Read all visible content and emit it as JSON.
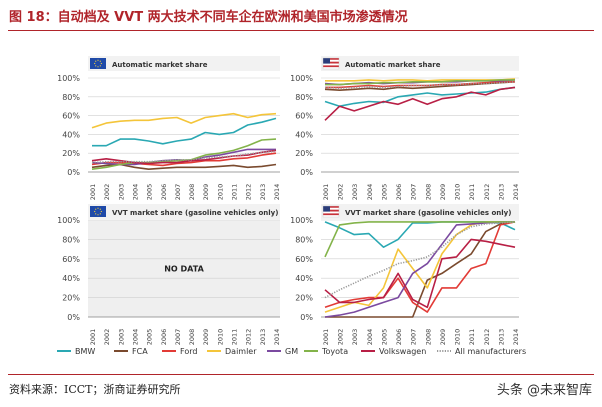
{
  "header": {
    "title": "图 18：自动档及 VVT 两大技术不同车企在欧洲和美国市场渗透情况"
  },
  "footer": {
    "source": "资料来源：ICCT；浙商证券研究所",
    "watermark": "头条 @未来智库"
  },
  "colors": {
    "BMW": "#2aa8b3",
    "FCA": "#7a4a2e",
    "Ford": "#e23b36",
    "Daimler": "#f4c53a",
    "GM": "#7b4aa0",
    "Toyota": "#83b34a",
    "Volkswagen": "#b81f45",
    "All manufacturers": "#9a9a9a"
  },
  "legend": [
    "BMW",
    "FCA",
    "Ford",
    "Daimler",
    "GM",
    "Toyota",
    "Volkswagen",
    "All manufacturers"
  ],
  "chart_data": [
    {
      "type": "line",
      "title": "Automatic market share",
      "region_flag": "eu-flag-icon",
      "x": [
        "2001",
        "2002",
        "2003",
        "2004",
        "2005",
        "2006",
        "2007",
        "2008",
        "2009",
        "2010",
        "2011",
        "2012",
        "2013",
        "2014"
      ],
      "ylim": [
        0,
        100
      ],
      "yticks": [
        "0%",
        "20%",
        "40%",
        "60%",
        "80%",
        "100%"
      ],
      "series": [
        {
          "name": "BMW",
          "values": [
            28,
            28,
            35,
            35,
            33,
            30,
            33,
            35,
            42,
            40,
            42,
            50,
            53,
            57
          ]
        },
        {
          "name": "FCA",
          "values": [
            5,
            7,
            8,
            5,
            3,
            4,
            5,
            5,
            5,
            6,
            7,
            5,
            6,
            8
          ]
        },
        {
          "name": "Ford",
          "values": [
            8,
            10,
            10,
            9,
            8,
            7,
            9,
            10,
            12,
            12,
            14,
            15,
            18,
            20
          ]
        },
        {
          "name": "Daimler",
          "values": [
            47,
            52,
            54,
            55,
            55,
            57,
            58,
            52,
            58,
            60,
            62,
            58,
            61,
            62
          ]
        },
        {
          "name": "GM",
          "values": [
            10,
            9,
            8,
            8,
            10,
            12,
            13,
            12,
            16,
            18,
            21,
            24,
            24,
            24
          ]
        },
        {
          "name": "Toyota",
          "values": [
            3,
            5,
            8,
            10,
            10,
            11,
            12,
            13,
            18,
            20,
            23,
            28,
            34,
            35
          ]
        },
        {
          "name": "Volkswagen",
          "values": [
            12,
            14,
            12,
            10,
            9,
            10,
            10,
            12,
            13,
            15,
            17,
            18,
            21,
            23
          ]
        },
        {
          "name": "All manufacturers",
          "values": [
            10,
            11,
            11,
            11,
            11,
            12,
            13,
            13,
            15,
            16,
            17,
            19,
            21,
            22
          ]
        }
      ]
    },
    {
      "type": "line",
      "title": "Automatic market share",
      "region_flag": "us-flag-icon",
      "x": [
        "2001",
        "2002",
        "2003",
        "2004",
        "2005",
        "2006",
        "2007",
        "2008",
        "2009",
        "2010",
        "2011",
        "2012",
        "2013",
        "2014"
      ],
      "ylim": [
        0,
        100
      ],
      "yticks": [
        "0%",
        "20%",
        "40%",
        "60%",
        "80%",
        "100%"
      ],
      "series": [
        {
          "name": "BMW",
          "values": [
            75,
            70,
            73,
            75,
            74,
            80,
            82,
            84,
            82,
            83,
            84,
            85,
            88,
            90
          ]
        },
        {
          "name": "FCA",
          "values": [
            88,
            87,
            88,
            89,
            88,
            90,
            89,
            90,
            91,
            92,
            93,
            94,
            95,
            96
          ]
        },
        {
          "name": "Ford",
          "values": [
            90,
            90,
            91,
            92,
            91,
            92,
            92,
            92,
            93,
            93,
            94,
            95,
            96,
            96
          ]
        },
        {
          "name": "Daimler",
          "values": [
            97,
            97,
            97,
            98,
            97,
            98,
            98,
            97,
            98,
            98,
            98,
            98,
            98,
            99
          ]
        },
        {
          "name": "GM",
          "values": [
            94,
            93,
            94,
            95,
            94,
            95,
            95,
            96,
            96,
            96,
            97,
            97,
            97,
            98
          ]
        },
        {
          "name": "Toyota",
          "values": [
            93,
            93,
            94,
            94,
            95,
            95,
            96,
            96,
            96,
            97,
            97,
            97,
            98,
            98
          ]
        },
        {
          "name": "Volkswagen",
          "values": [
            55,
            70,
            65,
            70,
            75,
            72,
            78,
            72,
            78,
            80,
            85,
            82,
            88,
            90
          ]
        },
        {
          "name": "All manufacturers",
          "values": [
            90,
            89,
            90,
            91,
            90,
            91,
            92,
            92,
            93,
            93,
            94,
            94,
            95,
            96
          ]
        }
      ]
    },
    {
      "type": "line",
      "title": "VVT market share (gasoline vehicles only)",
      "region_flag": "eu-flag-icon",
      "x": [
        "2001",
        "2002",
        "2003",
        "2004",
        "2005",
        "2006",
        "2007",
        "2008",
        "2009",
        "2010",
        "2011",
        "2012",
        "2013",
        "2014"
      ],
      "ylim": [
        0,
        100
      ],
      "yticks": [
        "0%",
        "20%",
        "40%",
        "60%",
        "80%",
        "100%"
      ],
      "annotation": "NO DATA",
      "series": []
    },
    {
      "type": "line",
      "title": "VVT market share (gasoline vehicles only)",
      "region_flag": "us-flag-icon",
      "x": [
        "2001",
        "2002",
        "2003",
        "2004",
        "2005",
        "2006",
        "2007",
        "2008",
        "2009",
        "2010",
        "2011",
        "2012",
        "2013",
        "2014"
      ],
      "ylim": [
        0,
        100
      ],
      "yticks": [
        "0%",
        "20%",
        "40%",
        "60%",
        "80%",
        "100%"
      ],
      "series": [
        {
          "name": "BMW",
          "values": [
            98,
            92,
            85,
            86,
            72,
            80,
            97,
            97,
            98,
            98,
            98,
            98,
            97,
            90
          ]
        },
        {
          "name": "FCA",
          "values": [
            0,
            0,
            0,
            0,
            0,
            0,
            0,
            38,
            45,
            55,
            65,
            88,
            96,
            98
          ]
        },
        {
          "name": "Ford",
          "values": [
            10,
            15,
            18,
            20,
            20,
            40,
            15,
            5,
            30,
            30,
            50,
            55,
            95,
            98
          ]
        },
        {
          "name": "Daimler",
          "values": [
            5,
            10,
            15,
            12,
            30,
            70,
            50,
            30,
            65,
            85,
            95,
            98,
            98,
            98
          ]
        },
        {
          "name": "GM",
          "values": [
            0,
            2,
            5,
            10,
            15,
            20,
            45,
            55,
            75,
            95,
            96,
            97,
            98,
            98
          ]
        },
        {
          "name": "Toyota",
          "values": [
            62,
            95,
            97,
            98,
            98,
            98,
            98,
            98,
            98,
            98,
            98,
            98,
            98,
            98
          ]
        },
        {
          "name": "Volkswagen",
          "values": [
            28,
            15,
            15,
            18,
            20,
            45,
            18,
            10,
            60,
            62,
            80,
            78,
            75,
            72
          ]
        },
        {
          "name": "All manufacturers",
          "values": [
            20,
            28,
            35,
            42,
            48,
            55,
            58,
            62,
            72,
            85,
            93,
            96,
            97,
            98
          ]
        }
      ]
    }
  ]
}
